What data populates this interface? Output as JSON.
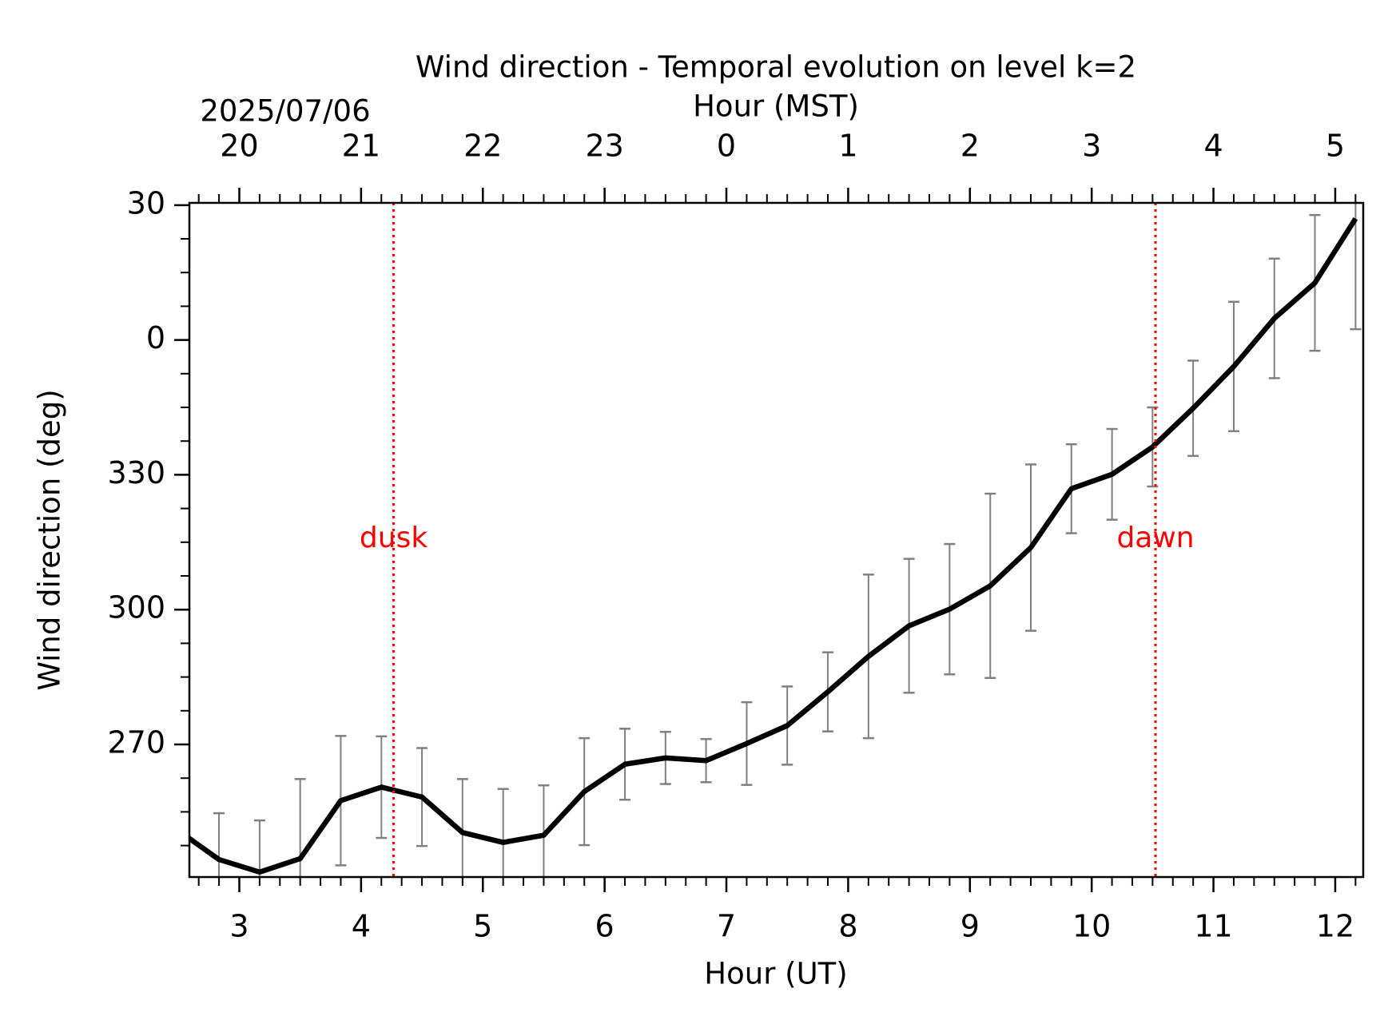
{
  "chart_data": {
    "type": "line",
    "title": "Wind direction - Temporal evolution on level k=2",
    "xlabel": "Hour (UT)",
    "ylabel": "Wind direction (deg)",
    "x2label": "Hour (MST)",
    "x2date": "2025/07/06",
    "x": [
      2.5,
      2.833,
      3.167,
      3.5,
      3.833,
      4.167,
      4.5,
      4.833,
      5.167,
      5.5,
      5.833,
      6.167,
      6.5,
      6.833,
      7.167,
      7.5,
      7.833,
      8.167,
      8.5,
      8.833,
      9.167,
      9.5,
      9.833,
      10.167,
      10.5,
      10.833,
      11.167,
      11.5,
      11.833,
      12.167
    ],
    "series": [
      {
        "color": "#000000",
        "error_color": "#808080",
        "values": [
          250.8,
          244.4,
          241.6,
          244.6,
          257.5,
          260.5,
          258.3,
          250.4,
          248.2,
          249.8,
          259.5,
          265.6,
          267.0,
          266.4,
          270.2,
          274.2,
          281.7,
          289.6,
          296.4,
          300.1,
          305.3,
          313.8,
          326.9,
          330.1,
          336.2,
          344.8,
          354.1,
          364.8,
          372.7,
          387.0
        ],
        "errors": [
          null,
          10.3,
          11.5,
          17.7,
          14.4,
          11.3,
          10.9,
          11.9,
          11.9,
          11.1,
          11.9,
          7.9,
          5.8,
          4.8,
          9.2,
          8.7,
          8.8,
          18.2,
          14.9,
          14.5,
          20.5,
          18.5,
          9.9,
          10.1,
          8.8,
          10.6,
          14.4,
          13.3,
          15.1,
          24.6
        ]
      }
    ],
    "xlim": [
      2.59,
      12.23
    ],
    "xticks": [
      3,
      4,
      5,
      6,
      7,
      8,
      9,
      10,
      11,
      12
    ],
    "x2ticks": [
      {
        "value": 3,
        "label": "20"
      },
      {
        "value": 4,
        "label": "21"
      },
      {
        "value": 5,
        "label": "22"
      },
      {
        "value": 6,
        "label": "23"
      },
      {
        "value": 7,
        "label": "0"
      },
      {
        "value": 8,
        "label": "1"
      },
      {
        "value": 9,
        "label": "2"
      },
      {
        "value": 10,
        "label": "3"
      },
      {
        "value": 11,
        "label": "4"
      },
      {
        "value": 12,
        "label": "5"
      }
    ],
    "xminor": 6,
    "ylim": [
      240.5,
      390.5
    ],
    "yticks": [
      270,
      300,
      330,
      {
        "value": 360,
        "label": "0"
      },
      {
        "value": 390,
        "label": "30"
      }
    ],
    "yminor": 4,
    "annotations": [
      {
        "text": "dusk",
        "x": 4.267,
        "color": "#ff0000"
      },
      {
        "text": "dawn",
        "x": 10.524,
        "color": "#ff0000"
      }
    ]
  }
}
